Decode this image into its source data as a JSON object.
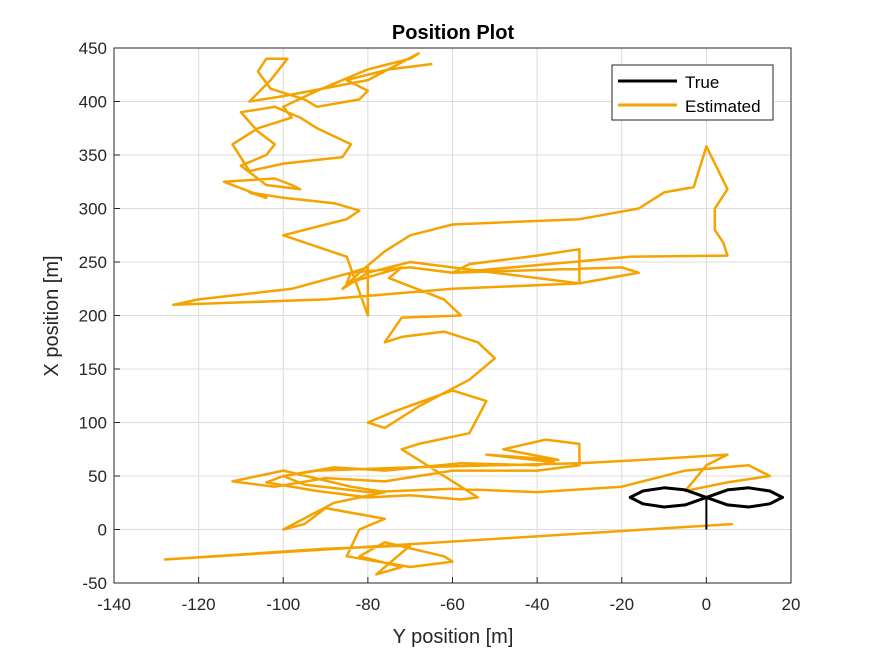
{
  "chart_data": {
    "type": "line",
    "title": "Position Plot",
    "xlabel": "Y position [m]",
    "ylabel": "X position [m]",
    "xlim": [
      -140,
      20
    ],
    "ylim": [
      -50,
      450
    ],
    "xticks": [
      -140,
      -120,
      -100,
      -80,
      -60,
      -40,
      -20,
      0,
      20
    ],
    "yticks": [
      -50,
      0,
      50,
      100,
      150,
      200,
      250,
      300,
      350,
      400,
      450
    ],
    "grid": true,
    "legend_position": "top-right",
    "series": [
      {
        "name": "True",
        "color": "#000000",
        "shape": "figure-eight",
        "x": [
          0,
          5,
          10,
          15,
          18,
          15,
          10,
          5,
          0,
          -5,
          -10,
          -15,
          -18,
          -15,
          -10,
          -5,
          0
        ],
        "y": [
          30,
          37,
          39,
          36,
          30,
          24,
          21,
          23,
          30,
          37,
          39,
          36,
          30,
          24,
          21,
          23,
          30
        ]
      },
      {
        "name": "Estimated",
        "color": "#f5a300",
        "x": [
          6,
          -128,
          -90,
          -70,
          -78,
          -72,
          -82,
          -76,
          -62,
          -60,
          -70,
          -85,
          -82,
          -76,
          -90,
          -95,
          -100,
          -88,
          -76,
          -84,
          -100,
          -112,
          -102,
          -90,
          -76,
          -60,
          -40,
          -30,
          -30,
          -38,
          -48,
          -35,
          -52,
          -36,
          -40,
          -58,
          -76,
          -88,
          -100,
          -95,
          -80,
          -60,
          -40,
          -20,
          -5,
          10,
          15,
          5,
          0,
          -5,
          0,
          5,
          -15,
          -30,
          -50,
          -70,
          -92,
          -100,
          -104,
          -92,
          -80,
          -70,
          -58,
          -54,
          -56,
          -68,
          -72,
          -68,
          -56,
          -52,
          -60,
          -74,
          -80,
          -76,
          -68,
          -56,
          -50,
          -54,
          -62,
          -72,
          -76,
          -72,
          -58,
          -62,
          -75,
          -72,
          -85,
          -84,
          -98,
          -120,
          -126,
          -90,
          -60,
          -30,
          -16,
          -20,
          -60,
          -56,
          -40,
          -30,
          -30,
          -50,
          -70,
          -80,
          -86,
          -82,
          -76,
          -70,
          -60,
          -30,
          -16,
          -10,
          -3,
          0,
          5,
          2,
          2,
          4,
          5,
          -18,
          -60,
          -70,
          -84,
          -80,
          -80,
          -85,
          -100,
          -90,
          -85,
          -82,
          -88,
          -100,
          -108,
          -104,
          -114,
          -102,
          -98,
          -96,
          -104,
          -110,
          -104,
          -102,
          -106,
          -110,
          -102,
          -96,
          -92,
          -84,
          -86,
          -100,
          -108,
          -112,
          -106,
          -98,
          -100,
          -92,
          -80,
          -70,
          -68,
          -80,
          -100,
          -108,
          -103,
          -99,
          -104,
          -106,
          -103,
          -95,
          -92,
          -82,
          -80,
          -85,
          -75,
          -65
        ],
        "y": [
          5,
          -28,
          -18,
          -15,
          -42,
          -35,
          -25,
          -12,
          -25,
          -30,
          -35,
          -25,
          0,
          10,
          20,
          5,
          0,
          25,
          35,
          40,
          55,
          45,
          40,
          48,
          45,
          55,
          55,
          60,
          80,
          84,
          75,
          65,
          70,
          63,
          60,
          62,
          55,
          58,
          50,
          42,
          35,
          38,
          35,
          40,
          55,
          60,
          50,
          44,
          40,
          36,
          60,
          70,
          65,
          62,
          60,
          58,
          55,
          50,
          44,
          36,
          30,
          32,
          28,
          30,
          35,
          65,
          75,
          80,
          90,
          120,
          130,
          110,
          100,
          95,
          115,
          140,
          160,
          175,
          185,
          180,
          175,
          198,
          200,
          215,
          235,
          245,
          230,
          240,
          225,
          215,
          210,
          215,
          225,
          230,
          240,
          245,
          240,
          248,
          256,
          262,
          230,
          240,
          250,
          240,
          225,
          240,
          260,
          275,
          285,
          290,
          300,
          315,
          320,
          358,
          318,
          300,
          280,
          268,
          256,
          255,
          240,
          245,
          240,
          245,
          200,
          255,
          275,
          285,
          290,
          298,
          305,
          310,
          315,
          310,
          325,
          328,
          322,
          318,
          322,
          340,
          350,
          360,
          372,
          390,
          395,
          385,
          375,
          360,
          348,
          342,
          335,
          360,
          375,
          385,
          395,
          410,
          430,
          440,
          445,
          420,
          405,
          400,
          420,
          440,
          440,
          428,
          412,
          402,
          395,
          402,
          410,
          420,
          430,
          435
        ]
      }
    ]
  }
}
